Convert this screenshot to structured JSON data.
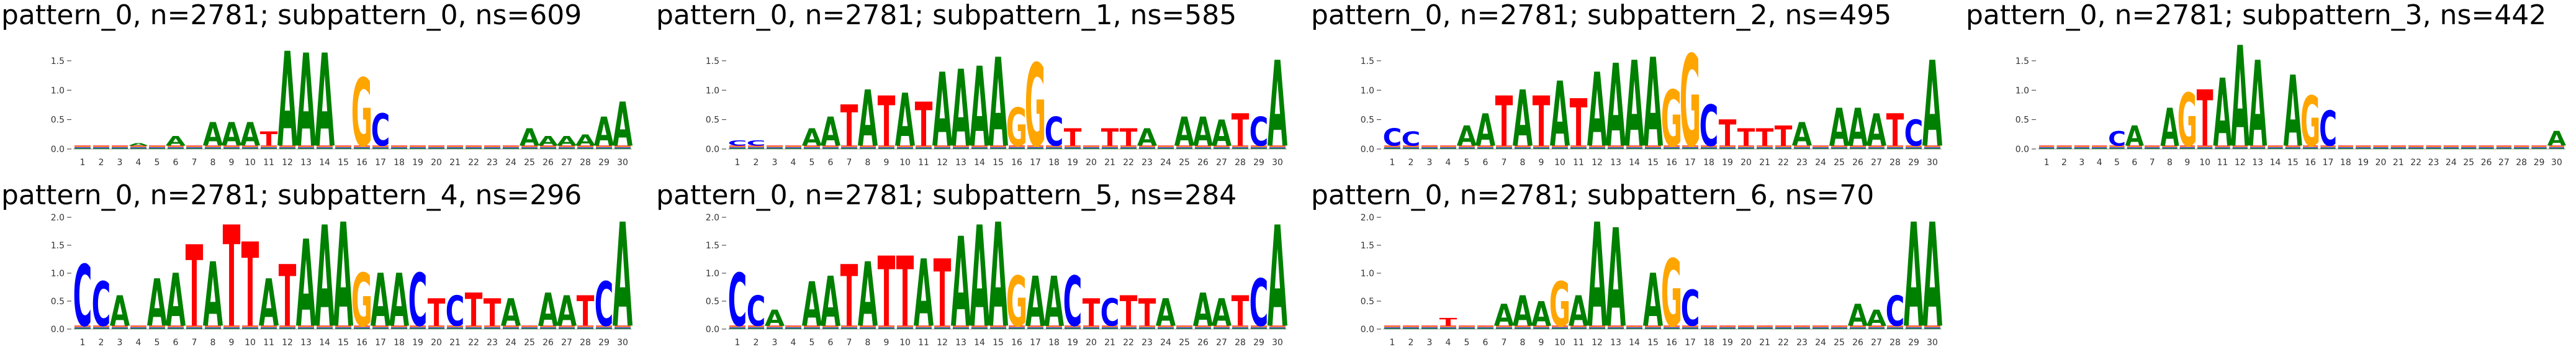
{
  "letter_colors": {
    "A": "#008000",
    "C": "#0000ff",
    "G": "#ffa500",
    "T": "#ff0000"
  },
  "x_ticks": [
    "1",
    "2",
    "3",
    "4",
    "5",
    "6",
    "7",
    "8",
    "9",
    "10",
    "11",
    "12",
    "13",
    "14",
    "15",
    "16",
    "17",
    "18",
    "19",
    "20",
    "21",
    "22",
    "23",
    "24",
    "25",
    "26",
    "27",
    "28",
    "29",
    "30"
  ],
  "chart_data": [
    {
      "type": "sequence-logo",
      "title": "pattern_0, n=2781; subpattern_0, ns=609",
      "ylim": [
        0,
        1.9
      ],
      "yticks": [
        "0.0",
        "0.5",
        "1.0",
        "1.5"
      ],
      "letters": [
        "",
        "",
        "",
        "A",
        "",
        "A",
        "",
        "A",
        "A",
        "A",
        "T",
        "A",
        "A",
        "A",
        "",
        "G",
        "C",
        "",
        "",
        "",
        "",
        "",
        "",
        "",
        "A",
        "A",
        "A",
        "A",
        "A",
        "A"
      ],
      "heights": [
        0.03,
        0.04,
        0.05,
        0.1,
        0.08,
        0.22,
        0.2,
        0.45,
        0.45,
        0.45,
        0.3,
        1.65,
        1.62,
        1.62,
        0.3,
        1.2,
        0.6,
        0.15,
        0.05,
        0.04,
        0.04,
        0.05,
        0.05,
        0.06,
        0.35,
        0.22,
        0.22,
        0.25,
        0.55,
        0.8
      ]
    },
    {
      "type": "sequence-logo",
      "title": "pattern_0, n=2781; subpattern_1, ns=585",
      "ylim": [
        0,
        1.9
      ],
      "yticks": [
        "0.0",
        "0.5",
        "1.0",
        "1.5"
      ],
      "letters": [
        "C",
        "C",
        "",
        "",
        "A",
        "A",
        "T",
        "A",
        "T",
        "A",
        "T",
        "A",
        "A",
        "A",
        "A",
        "G",
        "G",
        "C",
        "T",
        "",
        "T",
        "T",
        "A",
        "",
        "A",
        "A",
        "A",
        "T",
        "C",
        "A"
      ],
      "heights": [
        0.15,
        0.15,
        0.08,
        0.08,
        0.35,
        0.55,
        0.75,
        1.0,
        0.9,
        0.95,
        0.8,
        1.3,
        1.35,
        1.4,
        1.55,
        0.7,
        1.45,
        0.55,
        0.35,
        0.2,
        0.35,
        0.35,
        0.35,
        0.15,
        0.55,
        0.55,
        0.5,
        0.6,
        0.55,
        1.5
      ]
    },
    {
      "type": "sequence-logo",
      "title": "pattern_0, n=2781; subpattern_2, ns=495",
      "ylim": [
        0,
        1.9
      ],
      "yticks": [
        "0.0",
        "0.5",
        "1.0",
        "1.5"
      ],
      "letters": [
        "C",
        "C",
        "",
        "",
        "A",
        "A",
        "T",
        "A",
        "T",
        "A",
        "T",
        "A",
        "A",
        "A",
        "A",
        "G",
        "G",
        "C",
        "T",
        "T",
        "T",
        "T",
        "A",
        "",
        "A",
        "A",
        "A",
        "T",
        "C",
        "A"
      ],
      "heights": [
        0.35,
        0.3,
        0.1,
        0.1,
        0.4,
        0.6,
        0.9,
        1.0,
        0.9,
        1.15,
        0.85,
        1.3,
        1.45,
        1.5,
        1.55,
        1.0,
        1.6,
        0.75,
        0.5,
        0.35,
        0.35,
        0.4,
        0.45,
        0.2,
        0.7,
        0.7,
        0.6,
        0.6,
        0.5,
        1.5
      ]
    },
    {
      "type": "sequence-logo",
      "title": "pattern_0, n=2781; subpattern_3, ns=442",
      "ylim": [
        0,
        1.9
      ],
      "yticks": [
        "0.0",
        "0.5",
        "1.0",
        "1.5"
      ],
      "letters": [
        "",
        "",
        "",
        "",
        "C",
        "A",
        "",
        "A",
        "G",
        "T",
        "A",
        "A",
        "A",
        "",
        "A",
        "G",
        "C",
        "",
        "",
        "",
        "",
        "",
        "",
        "",
        "",
        "",
        "",
        "",
        "",
        "A"
      ],
      "heights": [
        0.05,
        0.05,
        0.05,
        0.1,
        0.3,
        0.4,
        0.3,
        0.7,
        0.95,
        1.0,
        1.2,
        1.75,
        1.5,
        0.45,
        1.25,
        0.9,
        0.65,
        0.05,
        0.03,
        0.03,
        0.03,
        0.03,
        0.03,
        0.03,
        0.03,
        0.03,
        0.03,
        0.05,
        0.08,
        0.3
      ]
    },
    {
      "type": "sequence-logo",
      "title": "pattern_0, n=2781; subpattern_4, ns=296",
      "ylim": [
        0,
        2.0
      ],
      "yticks": [
        "0.0",
        "0.5",
        "1.0",
        "1.5",
        "2.0"
      ],
      "letters": [
        "C",
        "C",
        "A",
        "",
        "A",
        "A",
        "T",
        "A",
        "T",
        "T",
        "A",
        "T",
        "A",
        "A",
        "A",
        "G",
        "A",
        "A",
        "C",
        "T",
        "C",
        "T",
        "T",
        "A",
        "",
        "A",
        "A",
        "T",
        "C",
        "A"
      ],
      "heights": [
        1.15,
        0.85,
        0.6,
        0.15,
        0.9,
        1.0,
        1.5,
        1.2,
        1.85,
        1.55,
        0.9,
        1.15,
        1.6,
        1.85,
        1.9,
        1.0,
        1.0,
        1.0,
        1.0,
        0.55,
        0.6,
        0.65,
        0.55,
        0.55,
        0.2,
        0.65,
        0.6,
        0.6,
        0.85,
        1.9
      ]
    },
    {
      "type": "sequence-logo",
      "title": "pattern_0, n=2781; subpattern_5, ns=284",
      "ylim": [
        0,
        2.0
      ],
      "yticks": [
        "0.0",
        "0.5",
        "1.0",
        "1.5",
        "2.0"
      ],
      "letters": [
        "C",
        "C",
        "A",
        "",
        "A",
        "A",
        "T",
        "A",
        "T",
        "T",
        "A",
        "T",
        "A",
        "A",
        "A",
        "G",
        "A",
        "A",
        "C",
        "T",
        "C",
        "T",
        "T",
        "A",
        "",
        "A",
        "A",
        "T",
        "C",
        "A"
      ],
      "heights": [
        1.0,
        0.6,
        0.35,
        0.1,
        0.85,
        0.95,
        1.15,
        1.2,
        1.3,
        1.3,
        1.25,
        1.25,
        1.65,
        1.85,
        1.9,
        0.95,
        0.95,
        0.95,
        0.95,
        0.55,
        0.55,
        0.6,
        0.55,
        0.55,
        0.15,
        0.65,
        0.55,
        0.6,
        0.9,
        1.85
      ]
    },
    {
      "type": "sequence-logo",
      "title": "pattern_0, n=2781; subpattern_6, ns=70",
      "ylim": [
        0,
        2.0
      ],
      "yticks": [
        "0.0",
        "0.5",
        "1.0",
        "1.5",
        "2.0"
      ],
      "letters": [
        "",
        "",
        "",
        "T",
        "",
        "",
        "A",
        "A",
        "A",
        "G",
        "A",
        "A",
        "A",
        "",
        "A",
        "G",
        "C",
        "",
        "",
        "",
        "",
        "",
        "",
        "",
        "",
        "A",
        "A",
        "C",
        "A",
        "A"
      ],
      "heights": [
        0.05,
        0.05,
        0.05,
        0.2,
        0.1,
        0.15,
        0.45,
        0.6,
        0.5,
        0.85,
        0.6,
        1.9,
        1.8,
        0.3,
        1.0,
        1.25,
        0.7,
        0.15,
        0.05,
        0.05,
        0.05,
        0.08,
        0.1,
        0.1,
        0.3,
        0.45,
        0.35,
        0.6,
        1.9,
        1.9
      ]
    }
  ]
}
